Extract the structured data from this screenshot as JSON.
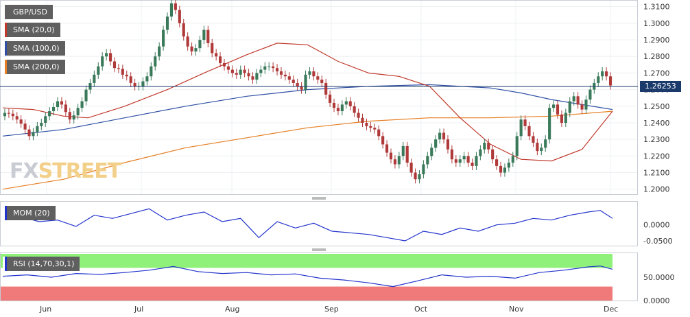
{
  "symbol_label": "GBP/USD",
  "legend": {
    "sma20": "SMA (20,0)",
    "sma100": "SMA (100,0)",
    "sma200": "SMA (200,0)",
    "mom": "MOM (20)",
    "rsi": "RSI (14,70,30,1)"
  },
  "colors": {
    "up": "#3a7a5a",
    "down": "#b03a3a",
    "sma20": "#c0392b",
    "sma100": "#2e4fa3",
    "sma200": "#e67e22",
    "mom": "#2233cc",
    "rsi": "#2233cc",
    "rsi_upper_band": "#8ff07a",
    "rsi_lower_band": "#f07a7a",
    "price_tag": "#1b3a6b"
  },
  "watermark": {
    "fx": "FX",
    "street": "STREET"
  },
  "current_price": "1.26253",
  "chart_data": [
    {
      "type": "candlestick",
      "title": "GBP/USD",
      "x_labels": [
        "Jun",
        "Jul",
        "Aug",
        "Sep",
        "Oct",
        "Nov",
        "Dec"
      ],
      "y_ticks": [
        "1.3100",
        "1.3000",
        "1.2900",
        "1.2800",
        "1.2700",
        "1.2600",
        "1.2500",
        "1.2400",
        "1.2300",
        "1.2200",
        "1.2100",
        "1.2000"
      ],
      "ylim": [
        1.197,
        1.314
      ],
      "close": [
        1.246,
        1.2455,
        1.244,
        1.242,
        1.2395,
        1.236,
        1.232,
        1.2345,
        1.238,
        1.24,
        1.244,
        1.247,
        1.2495,
        1.253,
        1.251,
        1.2465,
        1.242,
        1.2445,
        1.249,
        1.253,
        1.26,
        1.264,
        1.269,
        1.274,
        1.28,
        1.282,
        1.277,
        1.273,
        1.2725,
        1.269,
        1.268,
        1.264,
        1.262,
        1.262,
        1.265,
        1.268,
        1.274,
        1.28,
        1.286,
        1.296,
        1.304,
        1.312,
        1.308,
        1.3,
        1.292,
        1.286,
        1.283,
        1.285,
        1.29,
        1.296,
        1.288,
        1.282,
        1.28,
        1.276,
        1.274,
        1.272,
        1.27,
        1.269,
        1.272,
        1.27,
        1.268,
        1.266,
        1.27,
        1.272,
        1.274,
        1.274,
        1.273,
        1.271,
        1.269,
        1.268,
        1.266,
        1.264,
        1.262,
        1.26,
        1.269,
        1.271,
        1.268,
        1.266,
        1.264,
        1.257,
        1.252,
        1.249,
        1.247,
        1.251,
        1.253,
        1.25,
        1.246,
        1.243,
        1.24,
        1.238,
        1.237,
        1.236,
        1.232,
        1.227,
        1.222,
        1.218,
        1.215,
        1.22,
        1.226,
        1.216,
        1.21,
        1.206,
        1.209,
        1.215,
        1.22,
        1.225,
        1.23,
        1.234,
        1.23,
        1.224,
        1.218,
        1.216,
        1.218,
        1.22,
        1.216,
        1.214,
        1.22,
        1.224,
        1.228,
        1.224,
        1.218,
        1.214,
        1.21,
        1.213,
        1.216,
        1.22,
        1.232,
        1.242,
        1.238,
        1.232,
        1.228,
        1.223,
        1.225,
        1.23,
        1.249,
        1.251,
        1.245,
        1.24,
        1.246,
        1.253,
        1.256,
        1.251,
        1.248,
        1.254,
        1.26,
        1.264,
        1.268,
        1.271,
        1.268,
        1.2625
      ],
      "series": [
        {
          "name": "SMA (20,0)",
          "x_frac": [
            0,
            0.05,
            0.1,
            0.14,
            0.2,
            0.27,
            0.33,
            0.4,
            0.45,
            0.5,
            0.55,
            0.6,
            0.65,
            0.7,
            0.75,
            0.8,
            0.85,
            0.9,
            0.95,
            1
          ],
          "values": [
            1.249,
            1.248,
            1.244,
            1.243,
            1.25,
            1.26,
            1.27,
            1.281,
            1.288,
            1.287,
            1.277,
            1.27,
            1.268,
            1.262,
            1.243,
            1.227,
            1.218,
            1.217,
            1.224,
            1.247
          ]
        },
        {
          "name": "SMA (100,0)",
          "x_frac": [
            0,
            0.1,
            0.2,
            0.3,
            0.4,
            0.5,
            0.6,
            0.7,
            0.8,
            0.85,
            0.9,
            0.95,
            1
          ],
          "values": [
            1.232,
            1.236,
            1.243,
            1.25,
            1.256,
            1.26,
            1.262,
            1.263,
            1.261,
            1.258,
            1.254,
            1.251,
            1.248
          ]
        },
        {
          "name": "SMA (200,0)",
          "x_frac": [
            0,
            0.1,
            0.2,
            0.3,
            0.4,
            0.5,
            0.6,
            0.7,
            0.8,
            0.9,
            1
          ],
          "values": [
            1.2,
            1.206,
            1.216,
            1.225,
            1.231,
            1.237,
            1.241,
            1.243,
            1.243,
            1.244,
            1.247
          ]
        }
      ]
    },
    {
      "type": "line",
      "title": "MOM (20)",
      "y_ticks": [
        "0.0000",
        "-0.0500"
      ],
      "ylim": [
        -0.065,
        0.07
      ],
      "x_frac": [
        0,
        0.03,
        0.06,
        0.09,
        0.12,
        0.15,
        0.18,
        0.21,
        0.24,
        0.27,
        0.3,
        0.33,
        0.36,
        0.39,
        0.42,
        0.45,
        0.48,
        0.51,
        0.54,
        0.57,
        0.6,
        0.63,
        0.66,
        0.69,
        0.72,
        0.75,
        0.78,
        0.81,
        0.84,
        0.87,
        0.9,
        0.93,
        0.96,
        0.98,
        1
      ],
      "values": [
        0.02,
        0.025,
        0.01,
        0.015,
        -0.005,
        0.03,
        0.02,
        0.035,
        0.05,
        0.015,
        0.03,
        0.04,
        0.01,
        0.02,
        -0.04,
        0.01,
        -0.01,
        0.005,
        -0.02,
        -0.025,
        -0.03,
        -0.04,
        -0.05,
        -0.02,
        -0.03,
        -0.01,
        -0.02,
        0.0,
        0.005,
        0.02,
        0.015,
        0.03,
        0.04,
        0.045,
        0.02
      ]
    },
    {
      "type": "line",
      "title": "RSI (14,70,30,1)",
      "y_ticks": [
        "50.0000",
        "0.0000"
      ],
      "ylim": [
        0,
        100
      ],
      "upper_band": 70,
      "lower_band": 30,
      "x_frac": [
        0,
        0.04,
        0.08,
        0.12,
        0.16,
        0.2,
        0.24,
        0.28,
        0.32,
        0.36,
        0.4,
        0.44,
        0.48,
        0.52,
        0.56,
        0.6,
        0.64,
        0.68,
        0.72,
        0.76,
        0.8,
        0.84,
        0.88,
        0.92,
        0.96,
        0.98,
        1
      ],
      "values": [
        52,
        55,
        50,
        58,
        56,
        60,
        65,
        73,
        62,
        58,
        60,
        55,
        57,
        48,
        44,
        38,
        30,
        42,
        55,
        50,
        52,
        48,
        60,
        65,
        72,
        74,
        67
      ]
    }
  ]
}
